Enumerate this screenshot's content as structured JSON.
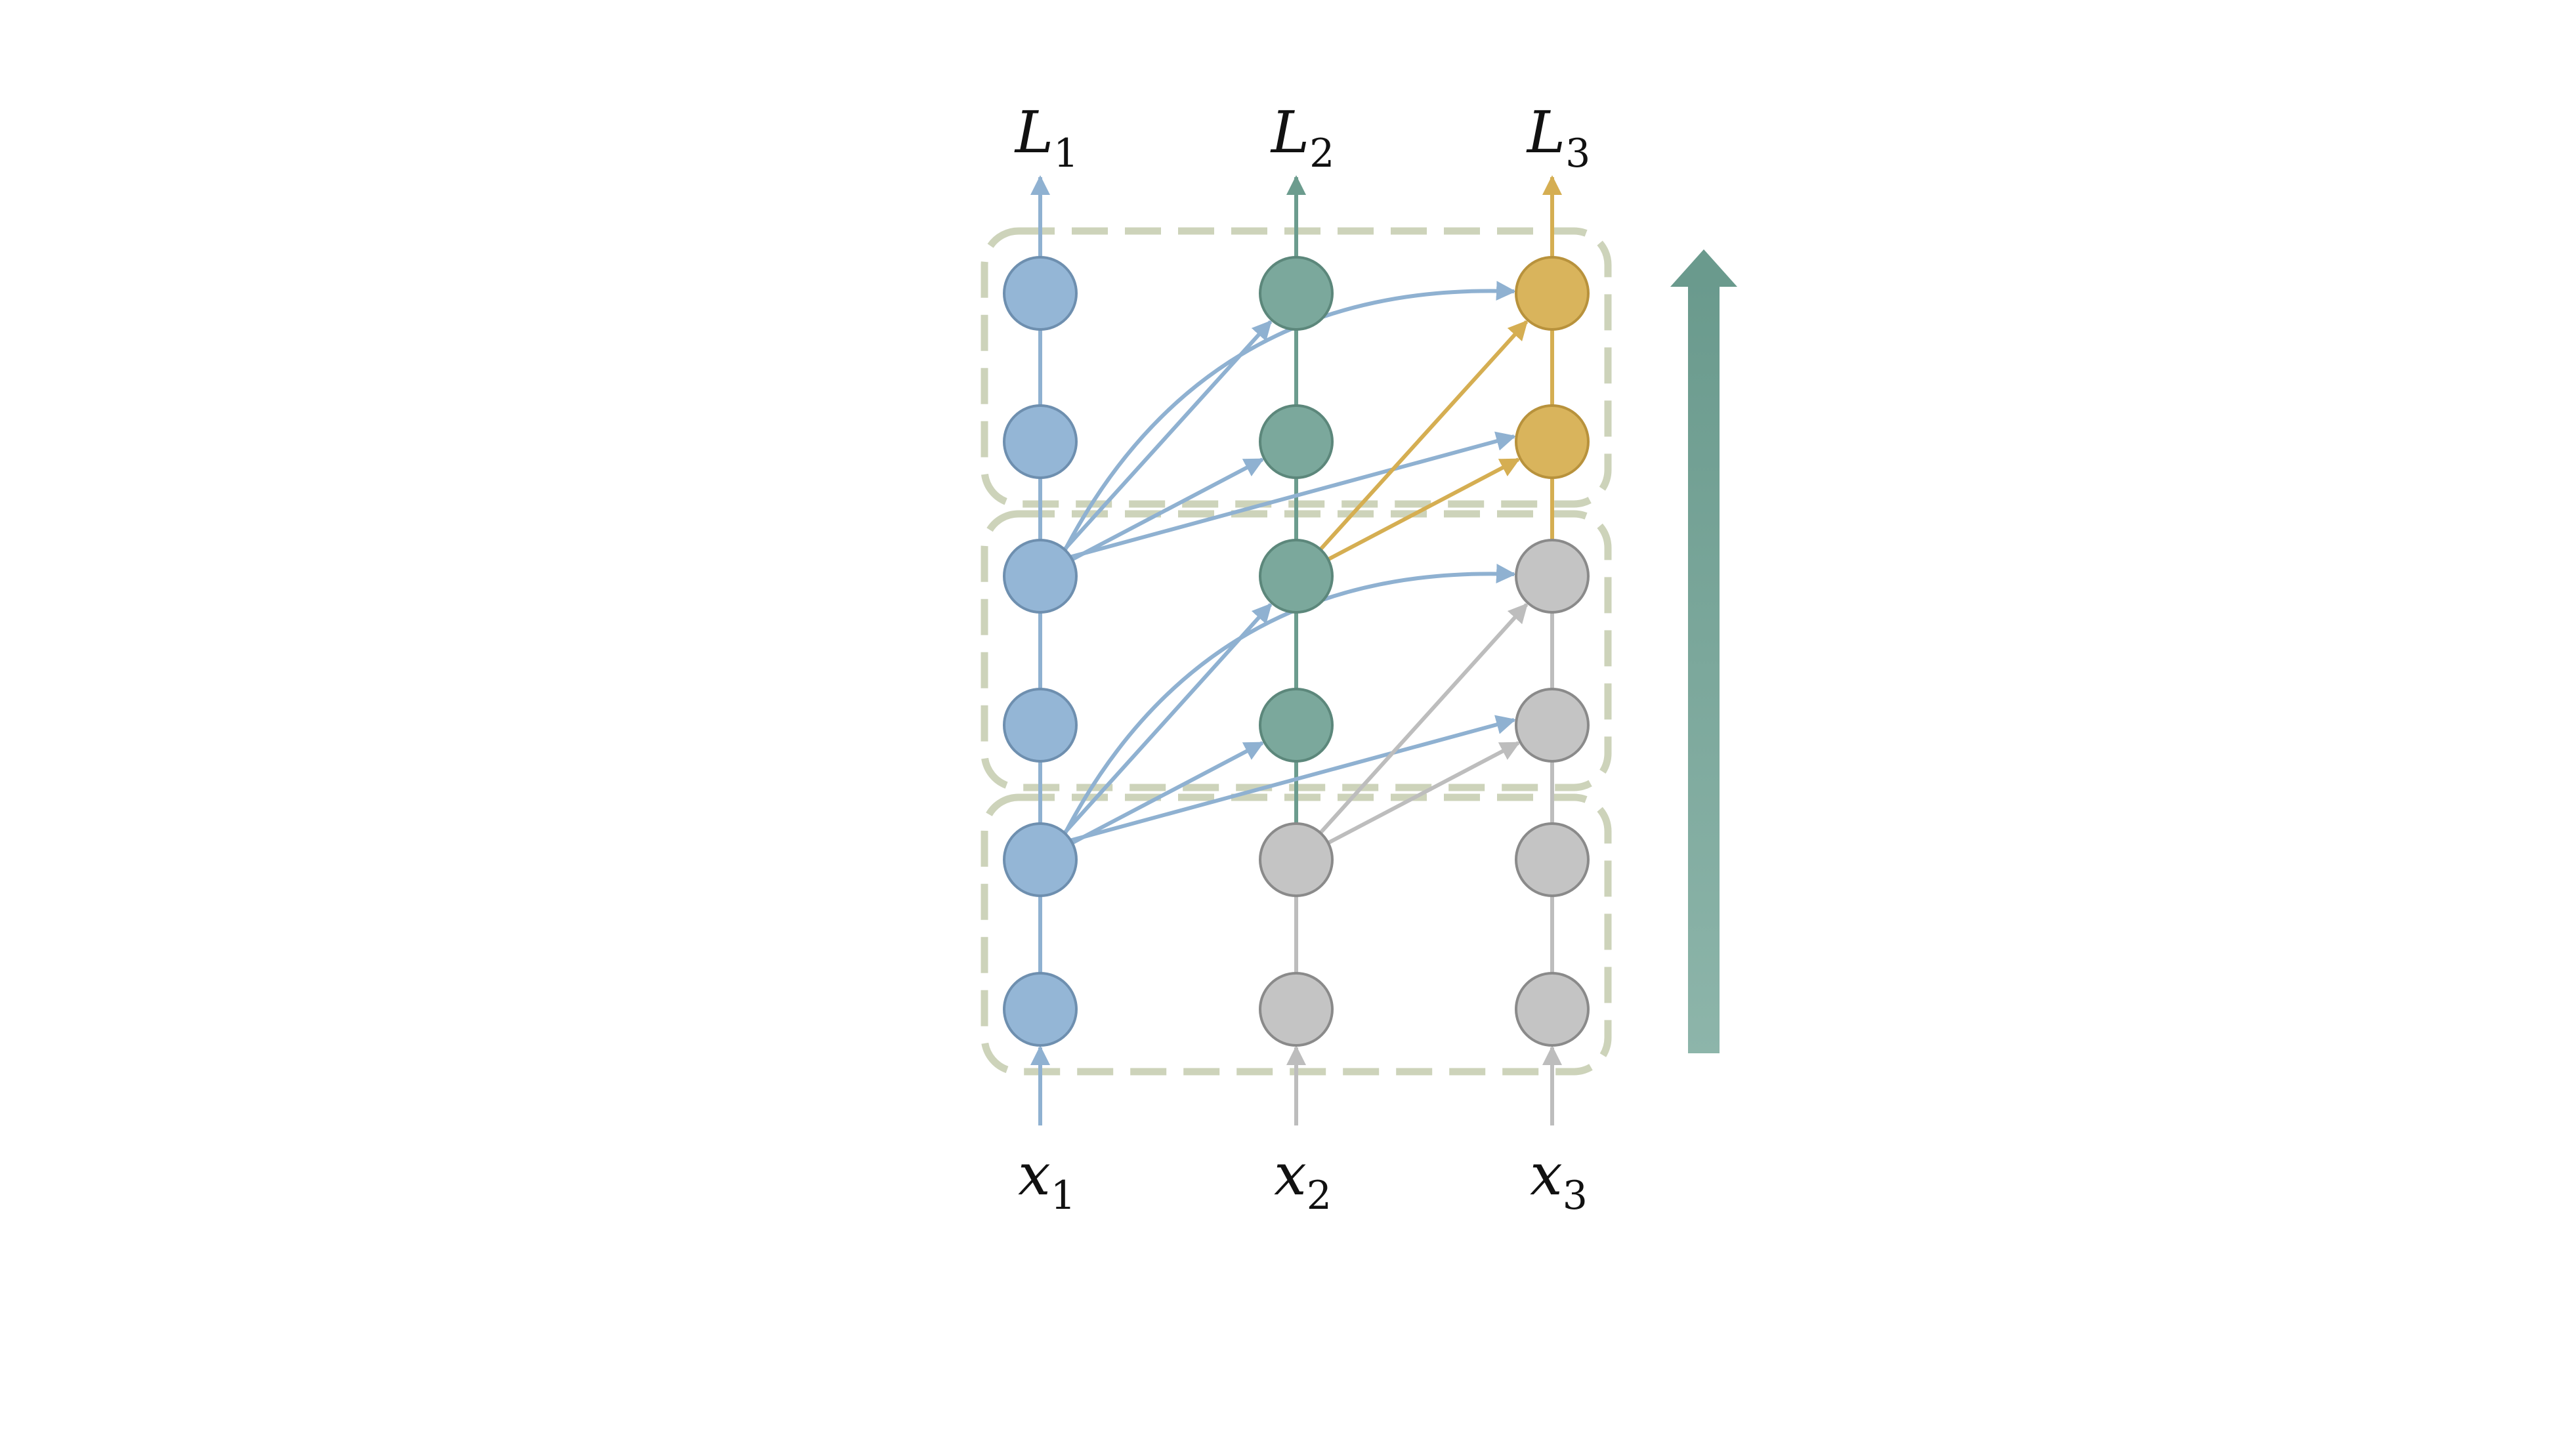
{
  "colors": {
    "blue_fill": "#94B6D6",
    "blue_stroke": "#6E8FAF",
    "green_fill": "#7BA89C",
    "green_stroke": "#5C877B",
    "gold_fill": "#D9B45C",
    "gold_stroke": "#B8923C",
    "gray_fill": "#C4C4C4",
    "gray_stroke": "#8A8A8A",
    "blue_edge": "#8FB1D1",
    "green_edge": "#6C9C8E",
    "gold_edge": "#D5AE52",
    "gray_edge": "#BDBDBD",
    "group_border": "#CDD3BA",
    "progress_arrow_top": "#6A9A8D",
    "progress_arrow_bottom": "#8DB5AA"
  },
  "outputs": [
    {
      "symbol": "L",
      "index": "1",
      "color": "blue"
    },
    {
      "symbol": "L",
      "index": "2",
      "color": "green"
    },
    {
      "symbol": "L",
      "index": "3",
      "color": "gold"
    }
  ],
  "inputs": [
    {
      "symbol": "x",
      "index": "1",
      "color": "blue"
    },
    {
      "symbol": "x",
      "index": "2",
      "color": "gray"
    },
    {
      "symbol": "x",
      "index": "3",
      "color": "gray"
    }
  ],
  "layers_bottom_to_top": [
    [
      "blue",
      "gray",
      "gray"
    ],
    [
      "blue",
      "gray",
      "gray"
    ],
    [
      "blue",
      "green",
      "gray"
    ],
    [
      "blue",
      "green",
      "gray"
    ],
    [
      "blue",
      "green",
      "gold"
    ],
    [
      "blue",
      "green",
      "gold"
    ]
  ],
  "block_count": 3,
  "progress_arrow_direction": "up"
}
